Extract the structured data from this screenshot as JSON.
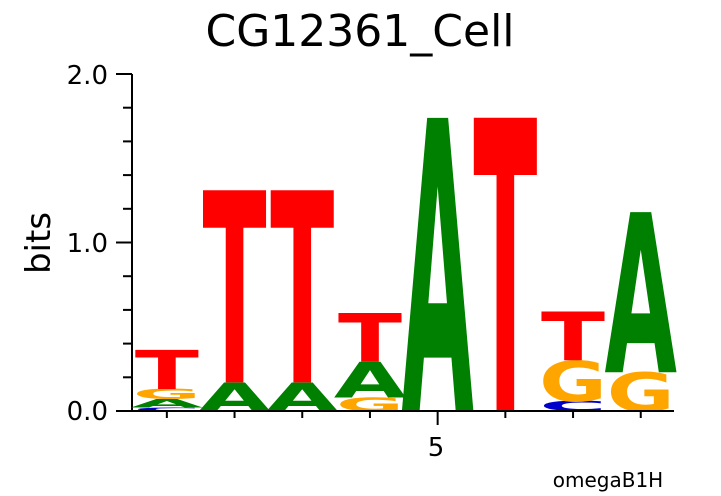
{
  "chart_data": {
    "type": "sequence-logo",
    "title": "CG12361_Cell",
    "ylabel": "bits",
    "ylim": [
      0,
      2
    ],
    "yticks": [
      "0.0",
      "1.0",
      "2.0"
    ],
    "xtick_label": "5",
    "footer": "omegaB1H",
    "colors": {
      "A": "#008000",
      "C": "#0000cc",
      "G": "#ffa500",
      "T": "#ff0000"
    },
    "positions": [
      {
        "pos": 1,
        "letters": [
          {
            "base": "C",
            "bits": 0.02
          },
          {
            "base": "A",
            "bits": 0.05
          },
          {
            "base": "G",
            "bits": 0.06
          },
          {
            "base": "T",
            "bits": 0.23
          }
        ]
      },
      {
        "pos": 2,
        "letters": [
          {
            "base": "A",
            "bits": 0.17
          },
          {
            "base": "T",
            "bits": 1.14
          }
        ]
      },
      {
        "pos": 3,
        "letters": [
          {
            "base": "A",
            "bits": 0.17
          },
          {
            "base": "T",
            "bits": 1.14
          }
        ]
      },
      {
        "pos": 4,
        "letters": [
          {
            "base": "G",
            "bits": 0.08
          },
          {
            "base": "A",
            "bits": 0.21
          },
          {
            "base": "T",
            "bits": 0.29
          }
        ]
      },
      {
        "pos": 5,
        "letters": [
          {
            "base": "A",
            "bits": 1.74
          }
        ]
      },
      {
        "pos": 6,
        "letters": [
          {
            "base": "T",
            "bits": 1.74
          }
        ]
      },
      {
        "pos": 7,
        "letters": [
          {
            "base": "C",
            "bits": 0.06
          },
          {
            "base": "G",
            "bits": 0.24
          },
          {
            "base": "T",
            "bits": 0.29
          }
        ]
      },
      {
        "pos": 8,
        "letters": [
          {
            "base": "G",
            "bits": 0.23
          },
          {
            "base": "A",
            "bits": 0.95
          }
        ]
      }
    ]
  }
}
